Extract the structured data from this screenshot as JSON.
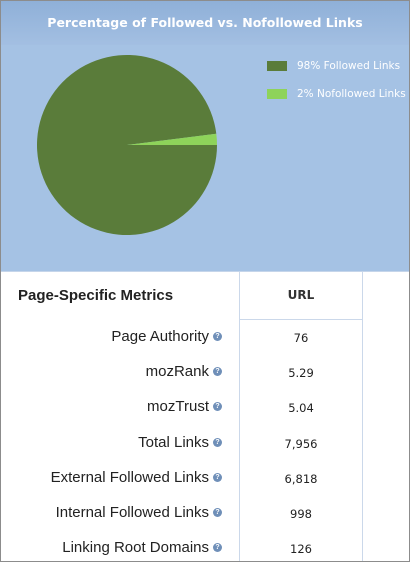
{
  "chart": {
    "title": "Percentage of Followed vs. Nofollowed Links",
    "colors": {
      "background": "#a5c2e4",
      "followed": "#5a7c3a",
      "nofollowed": "#8ed35a"
    }
  },
  "chart_data": {
    "type": "pie",
    "title": "Percentage of Followed vs. Nofollowed Links",
    "slices": [
      {
        "label": "98% Followed Links",
        "value": 98,
        "color": "#5a7c3a"
      },
      {
        "label": "2% Nofollowed Links",
        "value": 2,
        "color": "#8ed35a"
      }
    ],
    "legend": "top-right"
  },
  "metrics": {
    "title": "Page-Specific Metrics",
    "column_header": "URL",
    "help_icon": "question-icon",
    "rows": [
      {
        "label": "Page Authority",
        "value": "76"
      },
      {
        "label": "mozRank",
        "value": "5.29"
      },
      {
        "label": "mozTrust",
        "value": "5.04"
      },
      {
        "label": "Total Links",
        "value": "7,956"
      },
      {
        "label": "External Followed Links",
        "value": "6,818"
      },
      {
        "label": "Internal Followed Links",
        "value": "998"
      },
      {
        "label": "Linking Root Domains",
        "value": "126"
      }
    ]
  }
}
